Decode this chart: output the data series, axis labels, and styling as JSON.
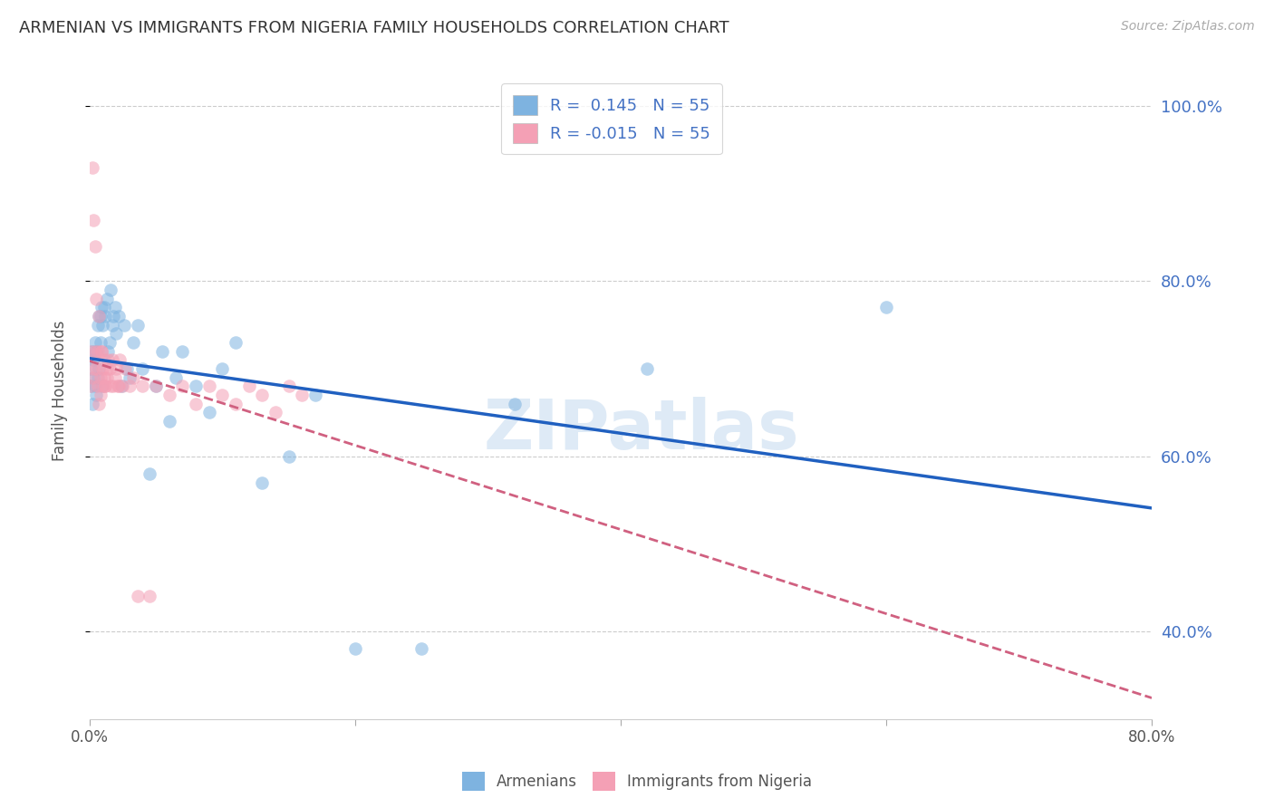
{
  "title": "ARMENIAN VS IMMIGRANTS FROM NIGERIA FAMILY HOUSEHOLDS CORRELATION CHART",
  "source": "Source: ZipAtlas.com",
  "ylabel": "Family Households",
  "legend_labels": [
    "Armenians",
    "Immigrants from Nigeria"
  ],
  "r_armenian": "0.145",
  "r_nigeria": "-0.015",
  "n_armenian": "55",
  "n_nigeria": "55",
  "color_armenian": "#7EB3E0",
  "color_nigeria": "#F4A0B5",
  "trendline_armenian": "#2060C0",
  "trendline_nigeria": "#D06080",
  "background": "#FFFFFF",
  "scatter_alpha": 0.55,
  "scatter_size": 110,
  "armenian_x": [
    0.001,
    0.001,
    0.002,
    0.002,
    0.003,
    0.003,
    0.004,
    0.004,
    0.005,
    0.005,
    0.006,
    0.006,
    0.007,
    0.007,
    0.008,
    0.008,
    0.009,
    0.01,
    0.01,
    0.011,
    0.012,
    0.013,
    0.014,
    0.015,
    0.016,
    0.017,
    0.018,
    0.019,
    0.02,
    0.022,
    0.024,
    0.026,
    0.028,
    0.03,
    0.033,
    0.036,
    0.04,
    0.045,
    0.05,
    0.055,
    0.06,
    0.065,
    0.07,
    0.08,
    0.09,
    0.1,
    0.11,
    0.13,
    0.15,
    0.17,
    0.2,
    0.25,
    0.32,
    0.42,
    0.6
  ],
  "armenian_y": [
    0.68,
    0.7,
    0.66,
    0.72,
    0.69,
    0.71,
    0.68,
    0.73,
    0.67,
    0.72,
    0.75,
    0.69,
    0.76,
    0.7,
    0.76,
    0.73,
    0.77,
    0.68,
    0.75,
    0.77,
    0.76,
    0.78,
    0.72,
    0.73,
    0.79,
    0.75,
    0.76,
    0.77,
    0.74,
    0.76,
    0.68,
    0.75,
    0.7,
    0.69,
    0.73,
    0.75,
    0.7,
    0.58,
    0.68,
    0.72,
    0.64,
    0.69,
    0.72,
    0.68,
    0.65,
    0.7,
    0.73,
    0.57,
    0.6,
    0.67,
    0.38,
    0.38,
    0.66,
    0.7,
    0.77
  ],
  "nigeria_x": [
    0.001,
    0.001,
    0.002,
    0.002,
    0.003,
    0.003,
    0.004,
    0.004,
    0.005,
    0.005,
    0.006,
    0.006,
    0.007,
    0.007,
    0.008,
    0.008,
    0.009,
    0.009,
    0.01,
    0.01,
    0.011,
    0.011,
    0.012,
    0.012,
    0.013,
    0.013,
    0.014,
    0.015,
    0.016,
    0.017,
    0.018,
    0.019,
    0.02,
    0.021,
    0.022,
    0.023,
    0.025,
    0.027,
    0.03,
    0.033,
    0.036,
    0.04,
    0.045,
    0.05,
    0.06,
    0.07,
    0.08,
    0.09,
    0.1,
    0.11,
    0.12,
    0.13,
    0.14,
    0.15,
    0.16
  ],
  "nigeria_y": [
    0.68,
    0.72,
    0.93,
    0.69,
    0.87,
    0.7,
    0.84,
    0.72,
    0.78,
    0.7,
    0.72,
    0.68,
    0.76,
    0.66,
    0.69,
    0.67,
    0.72,
    0.72,
    0.68,
    0.7,
    0.69,
    0.71,
    0.68,
    0.68,
    0.7,
    0.69,
    0.71,
    0.7,
    0.68,
    0.71,
    0.68,
    0.69,
    0.7,
    0.68,
    0.68,
    0.71,
    0.68,
    0.7,
    0.68,
    0.69,
    0.44,
    0.68,
    0.44,
    0.68,
    0.67,
    0.68,
    0.66,
    0.68,
    0.67,
    0.66,
    0.68,
    0.67,
    0.65,
    0.68,
    0.67
  ],
  "xlim": [
    0.0,
    0.8
  ],
  "ylim": [
    0.3,
    1.05
  ],
  "xticks": [
    0.0,
    0.2,
    0.4,
    0.6,
    0.8
  ],
  "yticks": [
    0.4,
    0.6,
    0.8,
    1.0
  ],
  "ytick_labels": [
    "40.0%",
    "60.0%",
    "80.0%",
    "100.0%"
  ]
}
